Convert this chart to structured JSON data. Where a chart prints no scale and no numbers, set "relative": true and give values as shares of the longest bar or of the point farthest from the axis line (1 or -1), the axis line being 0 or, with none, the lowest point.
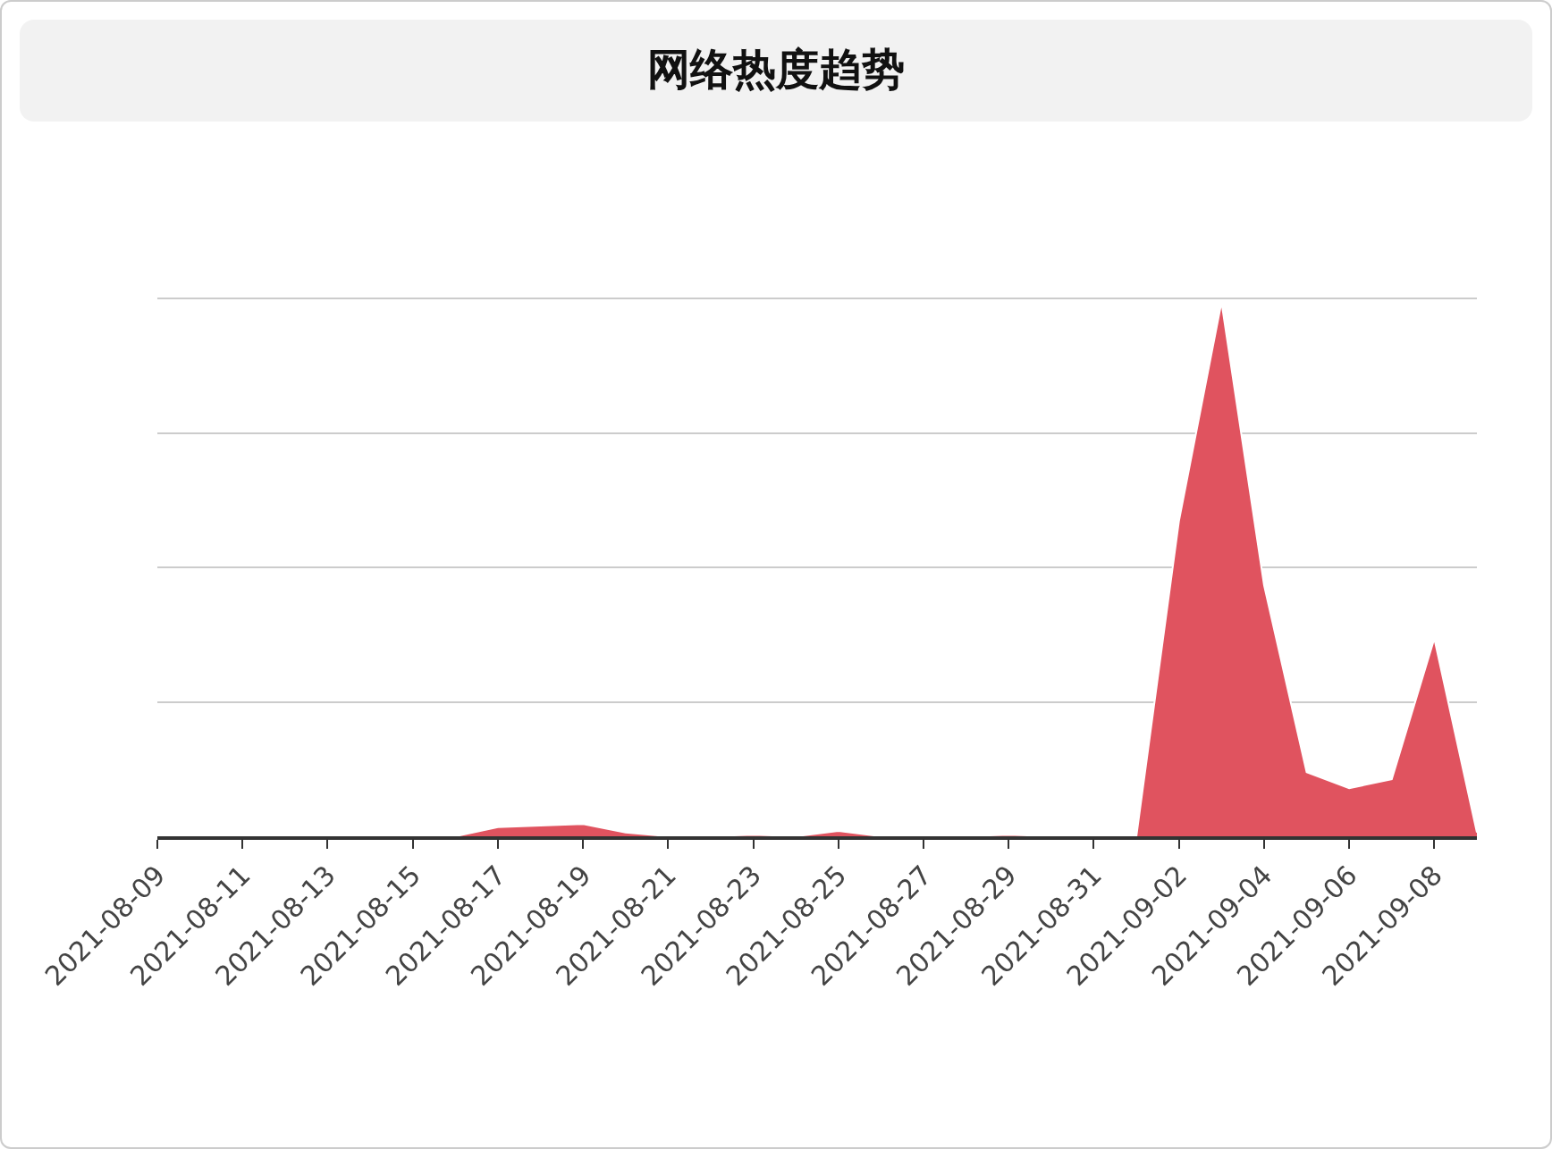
{
  "chart_data": {
    "type": "area",
    "title": "网络热度趋势",
    "relative": true,
    "grid": "y",
    "x": [
      "2021-08-09",
      "2021-08-10",
      "2021-08-11",
      "2021-08-12",
      "2021-08-13",
      "2021-08-14",
      "2021-08-15",
      "2021-08-16",
      "2021-08-17",
      "2021-08-18",
      "2021-08-19",
      "2021-08-20",
      "2021-08-21",
      "2021-08-22",
      "2021-08-23",
      "2021-08-24",
      "2021-08-25",
      "2021-08-26",
      "2021-08-27",
      "2021-08-28",
      "2021-08-29",
      "2021-08-30",
      "2021-08-31",
      "2021-09-01",
      "2021-09-02",
      "2021-09-03",
      "2021-09-04",
      "2021-09-05",
      "2021-09-06",
      "2021-09-07",
      "2021-09-08",
      "2021-09-09"
    ],
    "xlim": [
      "2021-08-09",
      "2021-09-09"
    ],
    "xticks": [
      "2021-08-09",
      "2021-08-11",
      "2021-08-13",
      "2021-08-15",
      "2021-08-17",
      "2021-08-19",
      "2021-08-21",
      "2021-08-23",
      "2021-08-25",
      "2021-08-27",
      "2021-08-29",
      "2021-08-31",
      "2021-09-02",
      "2021-09-04",
      "2021-09-06",
      "2021-09-08"
    ],
    "series": [
      {
        "color": "#e0535f",
        "values": [
          0,
          0,
          0,
          0,
          0,
          0,
          0,
          0,
          0.017,
          0.02,
          0.023,
          0.007,
          0,
          0,
          0.003,
          0,
          0.01,
          0,
          0,
          0,
          0.003,
          0,
          0,
          0,
          0.59,
          1,
          0.47,
          0.12,
          0.09,
          0.107,
          0.37,
          0.007
        ]
      }
    ]
  }
}
